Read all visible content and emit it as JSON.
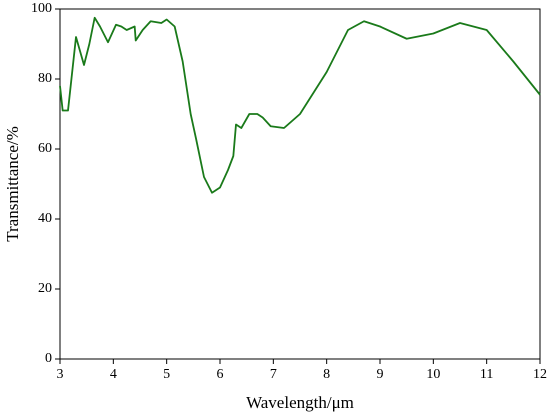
{
  "chart_data": {
    "type": "line",
    "x_label": "Wavelength/μm",
    "y_label": "Transmittance/%",
    "x": [
      3,
      3.05,
      3.15,
      3.3,
      3.45,
      3.55,
      3.65,
      3.75,
      3.9,
      4.05,
      4.15,
      4.25,
      4.4,
      4.42,
      4.55,
      4.7,
      4.9,
      5.0,
      5.15,
      5.3,
      5.45,
      5.55,
      5.7,
      5.85,
      6.0,
      6.15,
      6.25,
      6.3,
      6.4,
      6.55,
      6.7,
      6.8,
      6.95,
      7.2,
      7.5,
      8.0,
      8.4,
      8.7,
      9.0,
      9.5,
      10.0,
      10.5,
      11.0,
      11.5,
      12
    ],
    "series": [
      {
        "color": "#1a7a1a",
        "values": [
          78,
          71,
          71,
          92,
          84,
          90,
          97.5,
          95,
          90.5,
          95.5,
          95,
          94,
          95,
          91,
          94,
          96.5,
          96,
          97,
          95,
          85,
          70,
          63,
          52,
          47.5,
          49,
          54,
          58,
          67,
          66,
          70,
          70,
          69,
          66.5,
          66,
          70,
          82,
          94,
          96.5,
          95,
          91.5,
          93,
          96,
          94,
          85,
          75.5
        ]
      }
    ],
    "xlim": [
      3,
      12
    ],
    "ylim": [
      0,
      100
    ],
    "xticks": [
      3,
      4,
      5,
      6,
      7,
      8,
      9,
      10,
      11,
      12
    ],
    "yticks": [
      0,
      20,
      40,
      60,
      80,
      100
    ]
  }
}
